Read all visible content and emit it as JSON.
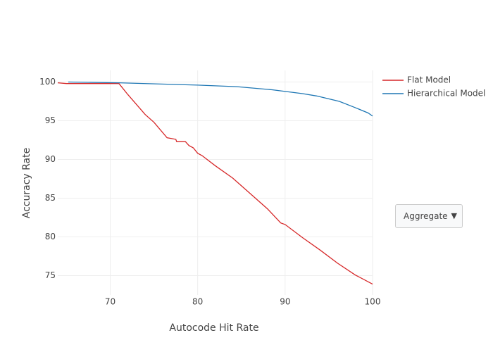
{
  "chart_data": {
    "type": "line",
    "x_label": "Autocode Hit Rate",
    "y_label": "Accuracy Rate",
    "xlim": [
      64,
      100
    ],
    "xticks": [
      70,
      80,
      90,
      100
    ],
    "ylim": [
      72.5,
      101.5
    ],
    "yticks": [
      75,
      80,
      85,
      90,
      95,
      100
    ],
    "grid": true,
    "legend": "top-right",
    "series": [
      {
        "name": "Flat Model",
        "color": "#d62728",
        "x": [
          64,
          65,
          71,
          72,
          74,
          75,
          76.5,
          77.5,
          77.6,
          78.6,
          79,
          79.5,
          80,
          80.5,
          82,
          84,
          86,
          88,
          89.5,
          90,
          92,
          94,
          96,
          98,
          100
        ],
        "values": [
          99.9,
          99.8,
          99.8,
          98.4,
          95.8,
          94.8,
          92.8,
          92.6,
          92.3,
          92.3,
          91.8,
          91.5,
          90.8,
          90.5,
          89.2,
          87.6,
          85.6,
          83.6,
          81.8,
          81.6,
          79.9,
          78.3,
          76.6,
          75.1,
          73.9
        ]
      },
      {
        "name": "Hierarchical Model",
        "color": "#1f77b4",
        "x": [
          65.2,
          71,
          80,
          84.5,
          88.5,
          92,
          93.6,
          96.2,
          98,
          99.5,
          100
        ],
        "values": [
          100,
          99.9,
          99.6,
          99.4,
          99.0,
          98.5,
          98.2,
          97.5,
          96.7,
          96.0,
          95.6
        ]
      }
    ]
  },
  "dropdown": {
    "selected": "Aggregate"
  }
}
